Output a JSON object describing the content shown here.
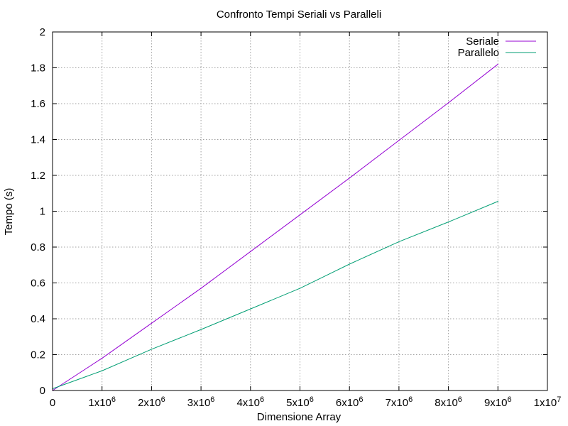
{
  "chart_data": {
    "type": "line",
    "title": "Confronto Tempi Seriali vs Paralleli",
    "xlabel": "Dimensione Array",
    "ylabel": "Tempo (s)",
    "xlim": [
      0,
      10000000
    ],
    "ylim": [
      0,
      2
    ],
    "grid": true,
    "legend_position": "top-right",
    "x_ticks": [
      {
        "value": 0,
        "base": "0",
        "exp": ""
      },
      {
        "value": 1000000,
        "base": "1x10",
        "exp": "6"
      },
      {
        "value": 2000000,
        "base": "2x10",
        "exp": "6"
      },
      {
        "value": 3000000,
        "base": "3x10",
        "exp": "6"
      },
      {
        "value": 4000000,
        "base": "4x10",
        "exp": "6"
      },
      {
        "value": 5000000,
        "base": "5x10",
        "exp": "6"
      },
      {
        "value": 6000000,
        "base": "6x10",
        "exp": "6"
      },
      {
        "value": 7000000,
        "base": "7x10",
        "exp": "6"
      },
      {
        "value": 8000000,
        "base": "8x10",
        "exp": "6"
      },
      {
        "value": 9000000,
        "base": "9x10",
        "exp": "6"
      },
      {
        "value": 10000000,
        "base": "1x10",
        "exp": "7"
      }
    ],
    "y_ticks": [
      {
        "value": 0,
        "label": "0"
      },
      {
        "value": 0.2,
        "label": "0.2"
      },
      {
        "value": 0.4,
        "label": "0.4"
      },
      {
        "value": 0.6,
        "label": "0.6"
      },
      {
        "value": 0.8,
        "label": "0.8"
      },
      {
        "value": 1.0,
        "label": "1"
      },
      {
        "value": 1.2,
        "label": "1.2"
      },
      {
        "value": 1.4,
        "label": "1.4"
      },
      {
        "value": 1.6,
        "label": "1.6"
      },
      {
        "value": 1.8,
        "label": "1.8"
      },
      {
        "value": 2.0,
        "label": "2"
      }
    ],
    "series": [
      {
        "name": "Seriale",
        "color": "#9400d3",
        "x": [
          0,
          1000000,
          2000000,
          3000000,
          4000000,
          5000000,
          6000000,
          7000000,
          8000000,
          9000000
        ],
        "y": [
          0.0,
          0.18,
          0.375,
          0.57,
          0.775,
          0.98,
          1.185,
          1.395,
          1.605,
          1.82
        ]
      },
      {
        "name": "Parallelo",
        "color": "#009e73",
        "x": [
          0,
          1000000,
          2000000,
          3000000,
          4000000,
          5000000,
          6000000,
          7000000,
          8000000,
          9000000
        ],
        "y": [
          0.01,
          0.11,
          0.23,
          0.34,
          0.455,
          0.57,
          0.705,
          0.83,
          0.94,
          1.055
        ]
      }
    ]
  }
}
